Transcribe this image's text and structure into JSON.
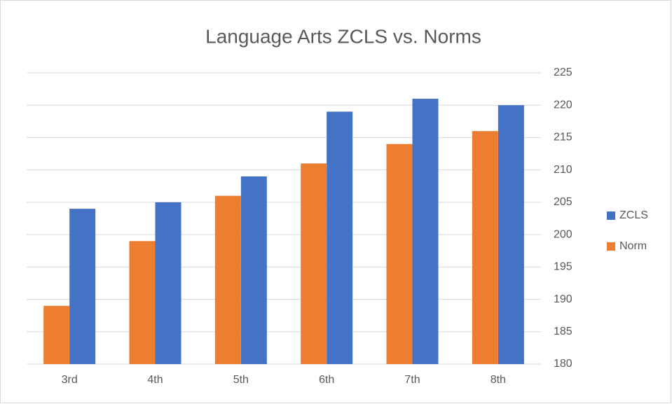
{
  "chart_data": {
    "type": "bar",
    "title": "Language Arts ZCLS vs. Norms",
    "categories": [
      "3rd",
      "4th",
      "5th",
      "6th",
      "7th",
      "8th"
    ],
    "series": [
      {
        "name": "ZCLS",
        "color": "#4472c4",
        "values": [
          204,
          205,
          209,
          219,
          221,
          220
        ]
      },
      {
        "name": "Norm",
        "color": "#ed7d31",
        "values": [
          189,
          199,
          206,
          211,
          214,
          216
        ]
      }
    ],
    "ylim": [
      180,
      225
    ],
    "yticks": [
      180,
      185,
      190,
      195,
      200,
      205,
      210,
      215,
      220,
      225
    ],
    "grid": true,
    "y_axis_side": "right",
    "legend": "right"
  }
}
